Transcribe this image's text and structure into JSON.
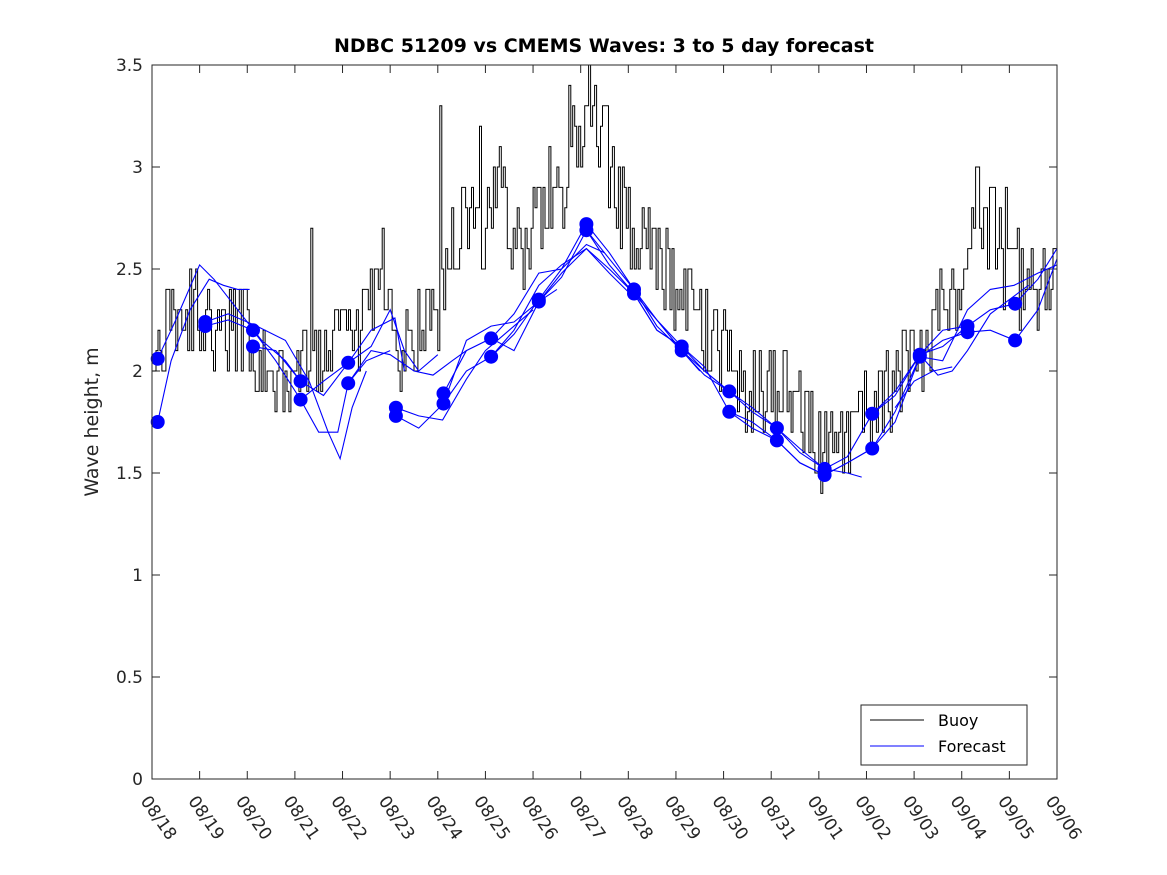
{
  "chart_data": {
    "type": "line",
    "title": "NDBC 51209 vs CMEMS Waves: 3 to 5 day forecast",
    "xlabel": "",
    "ylabel": "Wave height, m",
    "xlim": [
      0,
      19
    ],
    "ylim": [
      0,
      3.5
    ],
    "yticks": [
      0,
      0.5,
      1,
      1.5,
      2,
      2.5,
      3,
      3.5
    ],
    "ytick_labels": [
      "0",
      "0.5",
      "1",
      "1.5",
      "2",
      "2.5",
      "3",
      "3.5"
    ],
    "xtick_labels": [
      "08/18",
      "08/19",
      "08/20",
      "08/21",
      "08/22",
      "08/23",
      "08/24",
      "08/25",
      "08/26",
      "08/27",
      "08/28",
      "08/29",
      "08/30",
      "08/31",
      "09/01",
      "09/02",
      "09/03",
      "09/04",
      "09/05",
      "09/06"
    ],
    "colors": {
      "buoy": "#000000",
      "forecast": "#0000ff",
      "marker": "#0000ff"
    },
    "legend": {
      "position": "bottom-right",
      "entries": [
        "Buoy",
        "Forecast"
      ]
    },
    "buoy_anchors": [
      [
        0.0,
        2.0
      ],
      [
        0.3,
        2.2
      ],
      [
        0.7,
        2.3
      ],
      [
        1.0,
        2.2
      ],
      [
        1.5,
        2.2
      ],
      [
        2.0,
        2.2
      ],
      [
        2.3,
        2.0
      ],
      [
        2.6,
        1.9
      ],
      [
        3.0,
        2.1
      ],
      [
        3.3,
        2.0
      ],
      [
        3.6,
        2.0
      ],
      [
        4.0,
        2.2
      ],
      [
        4.3,
        2.1
      ],
      [
        4.6,
        2.3
      ],
      [
        4.8,
        2.5
      ],
      [
        5.0,
        2.3
      ],
      [
        5.2,
        2.1
      ],
      [
        5.5,
        2.2
      ],
      [
        6.0,
        2.3
      ],
      [
        6.3,
        2.6
      ],
      [
        6.6,
        2.8
      ],
      [
        7.0,
        2.7
      ],
      [
        7.3,
        2.9
      ],
      [
        7.6,
        2.6
      ],
      [
        8.0,
        2.7
      ],
      [
        8.5,
        2.9
      ],
      [
        9.0,
        3.1
      ],
      [
        9.3,
        3.2
      ],
      [
        9.5,
        3.1
      ],
      [
        9.7,
        2.9
      ],
      [
        10.0,
        2.7
      ],
      [
        10.5,
        2.6
      ],
      [
        11.0,
        2.4
      ],
      [
        11.5,
        2.2
      ],
      [
        12.0,
        2.1
      ],
      [
        12.5,
        1.9
      ],
      [
        13.0,
        1.9
      ],
      [
        13.5,
        1.9
      ],
      [
        14.0,
        1.6
      ],
      [
        14.5,
        1.6
      ],
      [
        15.0,
        1.8
      ],
      [
        15.5,
        1.9
      ],
      [
        16.0,
        2.1
      ],
      [
        16.5,
        2.3
      ],
      [
        17.0,
        2.5
      ],
      [
        17.3,
        2.8
      ],
      [
        17.6,
        2.7
      ],
      [
        18.0,
        2.5
      ],
      [
        18.5,
        2.4
      ],
      [
        19.0,
        2.5
      ]
    ],
    "forecast_markers": [
      [
        0.12,
        1.75
      ],
      [
        0.12,
        2.06
      ],
      [
        1.12,
        2.24
      ],
      [
        1.12,
        2.22
      ],
      [
        2.12,
        2.2
      ],
      [
        2.12,
        2.12
      ],
      [
        3.12,
        1.95
      ],
      [
        3.12,
        1.86
      ],
      [
        4.12,
        2.04
      ],
      [
        4.12,
        1.94
      ],
      [
        5.12,
        1.82
      ],
      [
        5.12,
        1.78
      ],
      [
        6.12,
        1.89
      ],
      [
        6.12,
        1.84
      ],
      [
        7.12,
        2.16
      ],
      [
        7.12,
        2.07
      ],
      [
        8.12,
        2.35
      ],
      [
        8.12,
        2.34
      ],
      [
        9.12,
        2.72
      ],
      [
        9.12,
        2.69
      ],
      [
        10.12,
        2.4
      ],
      [
        10.12,
        2.38
      ],
      [
        11.12,
        2.12
      ],
      [
        11.12,
        2.1
      ],
      [
        12.12,
        1.9
      ],
      [
        12.12,
        1.8
      ],
      [
        13.12,
        1.72
      ],
      [
        13.12,
        1.66
      ],
      [
        14.12,
        1.52
      ],
      [
        14.12,
        1.49
      ],
      [
        15.12,
        1.79
      ],
      [
        15.12,
        1.62
      ],
      [
        16.12,
        2.08
      ],
      [
        16.12,
        2.07
      ],
      [
        17.12,
        2.22
      ],
      [
        17.12,
        2.19
      ],
      [
        18.12,
        2.33
      ],
      [
        18.12,
        2.15
      ]
    ],
    "forecast_series": [
      {
        "name": "Forecast",
        "points": [
          [
            0.12,
            1.75
          ],
          [
            0.4,
            2.05
          ],
          [
            0.8,
            2.3
          ],
          [
            1.2,
            2.45
          ],
          [
            1.5,
            2.42
          ],
          [
            1.8,
            2.4
          ],
          [
            2.05,
            2.4
          ]
        ]
      },
      {
        "name": "Forecast",
        "points": [
          [
            0.12,
            2.06
          ],
          [
            0.5,
            2.25
          ],
          [
            1.0,
            2.52
          ],
          [
            1.3,
            2.45
          ],
          [
            1.8,
            2.3
          ],
          [
            2.3,
            2.15
          ],
          [
            2.8,
            2.05
          ],
          [
            3.12,
            1.95
          ]
        ]
      },
      {
        "name": "Forecast",
        "points": [
          [
            1.12,
            2.24
          ],
          [
            1.6,
            2.28
          ],
          [
            2.2,
            2.22
          ],
          [
            2.8,
            2.15
          ],
          [
            3.3,
            1.95
          ],
          [
            3.7,
            1.7
          ],
          [
            3.95,
            1.57
          ],
          [
            4.2,
            1.82
          ],
          [
            4.5,
            2.0
          ]
        ]
      },
      {
        "name": "Forecast",
        "points": [
          [
            1.12,
            2.22
          ],
          [
            1.6,
            2.25
          ],
          [
            2.12,
            2.2
          ],
          [
            2.6,
            2.05
          ],
          [
            3.12,
            1.86
          ],
          [
            3.5,
            1.7
          ],
          [
            3.9,
            1.7
          ],
          [
            4.12,
            1.94
          ],
          [
            4.5,
            2.05
          ],
          [
            5.0,
            2.1
          ]
        ]
      },
      {
        "name": "Forecast",
        "points": [
          [
            2.12,
            2.12
          ],
          [
            2.6,
            2.1
          ],
          [
            3.12,
            1.95
          ],
          [
            3.6,
            1.88
          ],
          [
            4.12,
            2.04
          ],
          [
            4.6,
            2.2
          ],
          [
            5.1,
            2.26
          ],
          [
            5.3,
            2.0
          ]
        ]
      },
      {
        "name": "Forecast",
        "points": [
          [
            3.12,
            1.86
          ],
          [
            3.6,
            1.95
          ],
          [
            4.12,
            2.04
          ],
          [
            4.6,
            2.12
          ],
          [
            5.0,
            2.3
          ],
          [
            5.3,
            2.1
          ],
          [
            5.6,
            2.0
          ],
          [
            6.0,
            2.08
          ]
        ]
      },
      {
        "name": "Forecast",
        "points": [
          [
            4.12,
            1.94
          ],
          [
            4.6,
            2.1
          ],
          [
            5.0,
            2.08
          ],
          [
            5.5,
            2.0
          ],
          [
            5.9,
            1.98
          ],
          [
            6.3,
            2.05
          ],
          [
            6.6,
            2.1
          ]
        ]
      },
      {
        "name": "Forecast",
        "points": [
          [
            5.12,
            1.82
          ],
          [
            5.6,
            1.78
          ],
          [
            6.1,
            1.76
          ],
          [
            6.6,
            1.96
          ],
          [
            7.0,
            2.1
          ],
          [
            7.5,
            2.2
          ],
          [
            8.0,
            2.3
          ]
        ]
      },
      {
        "name": "Forecast",
        "points": [
          [
            5.12,
            1.78
          ],
          [
            5.6,
            1.72
          ],
          [
            6.12,
            1.84
          ],
          [
            6.6,
            2.15
          ],
          [
            7.12,
            2.22
          ],
          [
            7.6,
            2.24
          ],
          [
            8.12,
            2.34
          ],
          [
            8.5,
            2.4
          ]
        ]
      },
      {
        "name": "Forecast",
        "points": [
          [
            6.12,
            1.89
          ],
          [
            6.6,
            2.1
          ],
          [
            7.12,
            2.16
          ],
          [
            7.6,
            2.28
          ],
          [
            8.12,
            2.48
          ],
          [
            8.6,
            2.5
          ],
          [
            9.12,
            2.62
          ],
          [
            9.5,
            2.58
          ]
        ]
      },
      {
        "name": "Forecast",
        "points": [
          [
            6.12,
            1.84
          ],
          [
            6.6,
            2.0
          ],
          [
            7.12,
            2.07
          ],
          [
            7.6,
            2.2
          ],
          [
            8.12,
            2.42
          ],
          [
            8.6,
            2.52
          ],
          [
            9.12,
            2.6
          ],
          [
            9.6,
            2.48
          ],
          [
            10.12,
            2.36
          ]
        ]
      },
      {
        "name": "Forecast",
        "points": [
          [
            7.12,
            2.16
          ],
          [
            7.6,
            2.1
          ],
          [
            8.12,
            2.34
          ],
          [
            8.6,
            2.46
          ],
          [
            9.12,
            2.69
          ],
          [
            9.6,
            2.52
          ],
          [
            10.12,
            2.38
          ],
          [
            10.6,
            2.25
          ],
          [
            11.12,
            2.12
          ]
        ]
      },
      {
        "name": "Forecast",
        "points": [
          [
            7.12,
            2.07
          ],
          [
            7.6,
            2.18
          ],
          [
            8.12,
            2.35
          ],
          [
            8.6,
            2.5
          ],
          [
            9.12,
            2.72
          ],
          [
            9.6,
            2.58
          ],
          [
            10.12,
            2.4
          ],
          [
            10.6,
            2.22
          ],
          [
            11.12,
            2.1
          ],
          [
            11.5,
            2.0
          ]
        ]
      },
      {
        "name": "Forecast",
        "points": [
          [
            8.12,
            2.34
          ],
          [
            8.6,
            2.48
          ],
          [
            9.12,
            2.6
          ],
          [
            9.6,
            2.5
          ],
          [
            10.12,
            2.38
          ],
          [
            10.6,
            2.2
          ],
          [
            11.12,
            2.12
          ],
          [
            11.6,
            2.0
          ],
          [
            12.12,
            1.9
          ]
        ]
      },
      {
        "name": "Forecast",
        "points": [
          [
            9.12,
            2.69
          ],
          [
            9.6,
            2.55
          ],
          [
            10.12,
            2.4
          ],
          [
            10.6,
            2.25
          ],
          [
            11.12,
            2.1
          ],
          [
            11.6,
            1.98
          ],
          [
            12.12,
            1.9
          ],
          [
            12.6,
            1.8
          ],
          [
            13.12,
            1.72
          ]
        ]
      },
      {
        "name": "Forecast",
        "points": [
          [
            10.12,
            2.38
          ],
          [
            10.6,
            2.2
          ],
          [
            11.12,
            2.12
          ],
          [
            11.6,
            2.02
          ],
          [
            12.12,
            1.8
          ],
          [
            12.6,
            1.72
          ],
          [
            13.12,
            1.66
          ],
          [
            13.6,
            1.55
          ],
          [
            14.12,
            1.49
          ]
        ]
      },
      {
        "name": "Forecast",
        "points": [
          [
            11.12,
            2.1
          ],
          [
            11.6,
            2.0
          ],
          [
            12.12,
            1.9
          ],
          [
            12.6,
            1.82
          ],
          [
            13.12,
            1.72
          ],
          [
            13.6,
            1.6
          ],
          [
            14.12,
            1.52
          ],
          [
            14.6,
            1.5
          ],
          [
            14.9,
            1.48
          ]
        ]
      },
      {
        "name": "Forecast",
        "points": [
          [
            12.12,
            1.8
          ],
          [
            12.6,
            1.75
          ],
          [
            13.12,
            1.66
          ],
          [
            13.6,
            1.55
          ],
          [
            14.12,
            1.49
          ],
          [
            14.6,
            1.55
          ],
          [
            15.12,
            1.62
          ],
          [
            15.6,
            1.75
          ],
          [
            16.12,
            2.07
          ]
        ]
      },
      {
        "name": "Forecast",
        "points": [
          [
            13.12,
            1.72
          ],
          [
            13.6,
            1.62
          ],
          [
            14.12,
            1.52
          ],
          [
            14.6,
            1.58
          ],
          [
            15.12,
            1.79
          ],
          [
            15.6,
            1.88
          ],
          [
            16.12,
            2.08
          ],
          [
            16.6,
            2.12
          ],
          [
            17.12,
            2.22
          ]
        ]
      },
      {
        "name": "Forecast",
        "points": [
          [
            14.12,
            1.49
          ],
          [
            14.6,
            1.55
          ],
          [
            15.12,
            1.62
          ],
          [
            15.6,
            1.8
          ],
          [
            16.12,
            2.07
          ],
          [
            16.6,
            2.15
          ],
          [
            17.12,
            2.19
          ],
          [
            17.6,
            2.2
          ],
          [
            18.12,
            2.15
          ],
          [
            18.6,
            2.3
          ],
          [
            19.0,
            2.55
          ]
        ]
      },
      {
        "name": "Forecast",
        "points": [
          [
            15.12,
            1.79
          ],
          [
            15.6,
            1.9
          ],
          [
            16.12,
            2.08
          ],
          [
            16.6,
            2.2
          ],
          [
            17.12,
            2.22
          ],
          [
            17.6,
            2.3
          ],
          [
            18.12,
            2.33
          ],
          [
            18.6,
            2.45
          ],
          [
            19.0,
            2.6
          ]
        ]
      },
      {
        "name": "Forecast",
        "points": [
          [
            16.12,
            2.07
          ],
          [
            16.6,
            2.05
          ],
          [
            17.12,
            2.3
          ],
          [
            17.6,
            2.4
          ],
          [
            18.1,
            2.42
          ],
          [
            18.6,
            2.48
          ],
          [
            19.0,
            2.52
          ]
        ]
      },
      {
        "name": "Forecast",
        "points": [
          [
            16.12,
            2.08
          ],
          [
            16.5,
            1.98
          ],
          [
            16.8,
            2.0
          ],
          [
            17.12,
            2.1
          ],
          [
            17.6,
            2.28
          ],
          [
            18.0,
            2.35
          ],
          [
            18.4,
            2.42
          ]
        ]
      },
      {
        "name": "Forecast",
        "points": [
          [
            15.6,
            1.82
          ],
          [
            16.0,
            1.95
          ],
          [
            16.4,
            2.0
          ],
          [
            16.8,
            2.02
          ]
        ]
      }
    ]
  }
}
